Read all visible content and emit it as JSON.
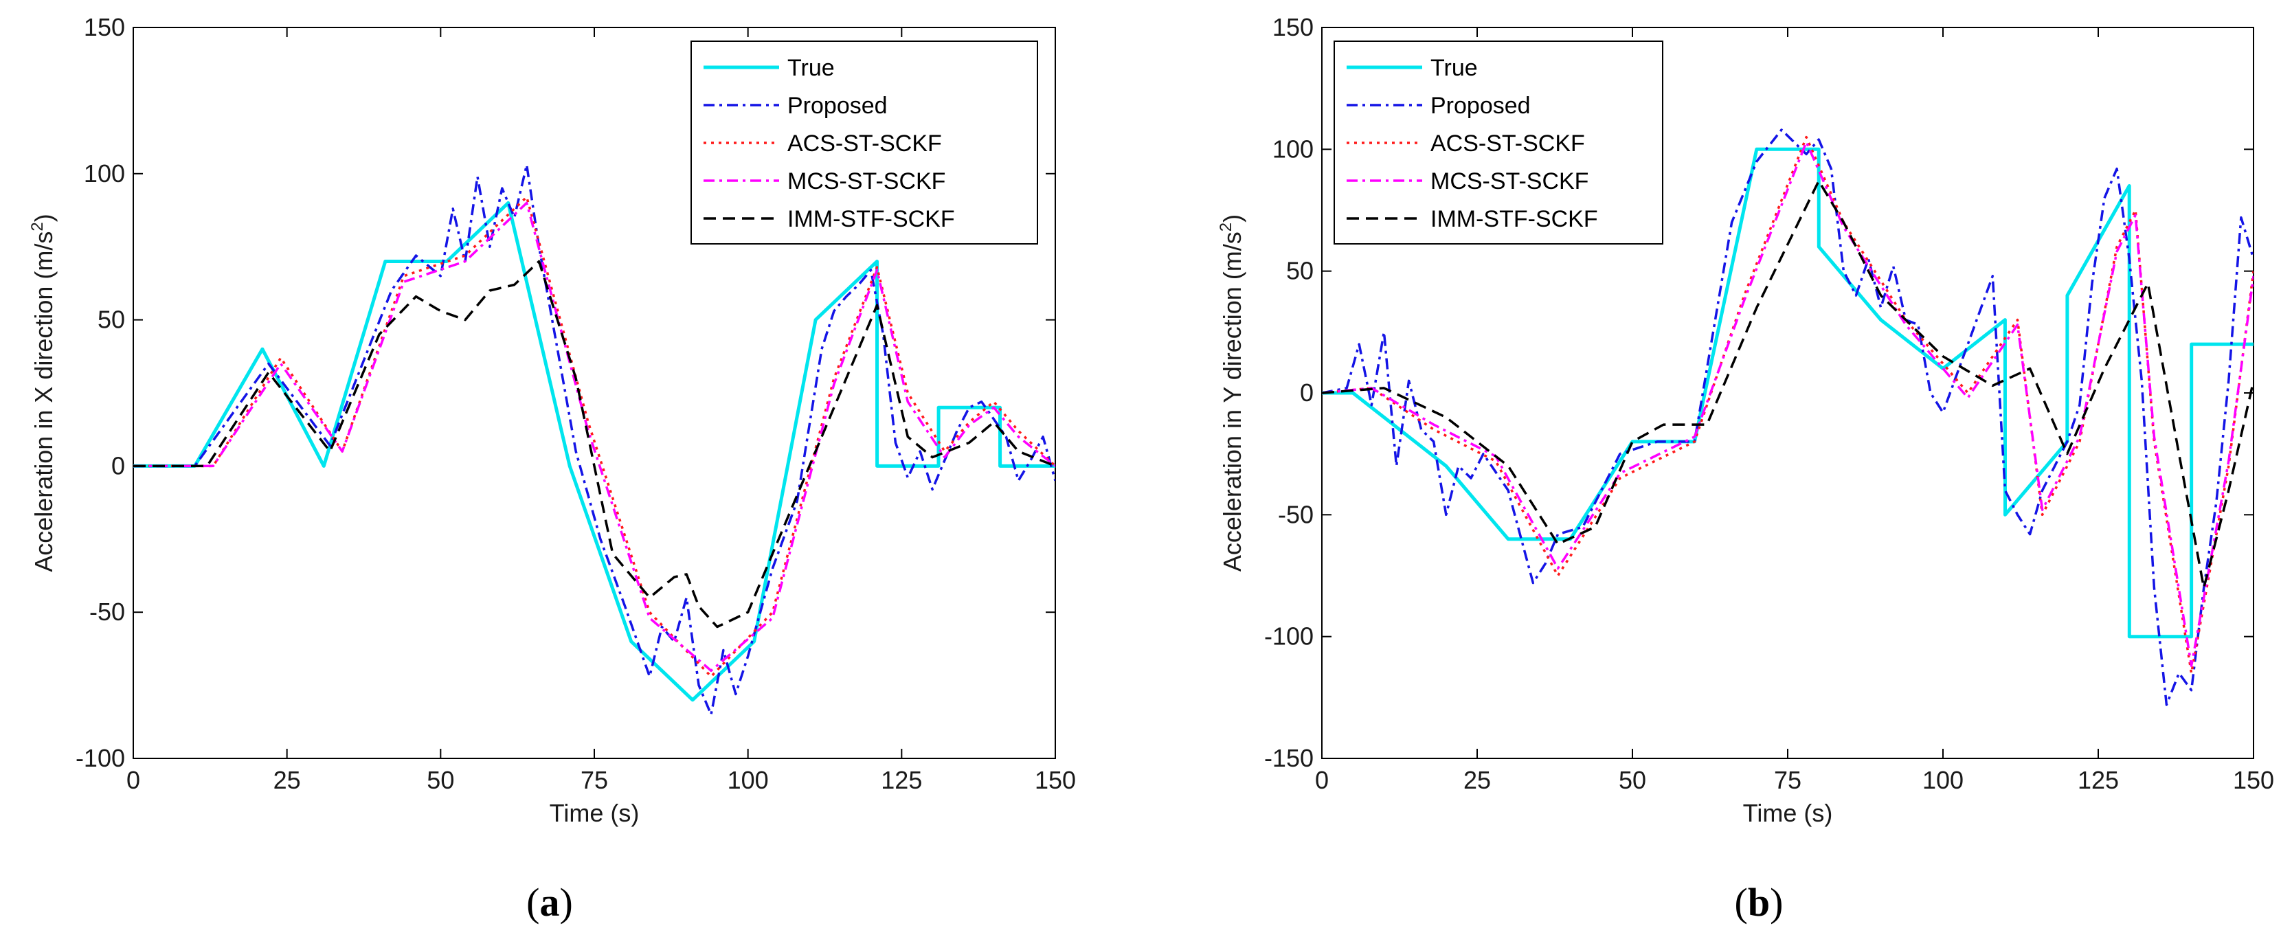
{
  "chart_data": [
    {
      "type": "line",
      "panel_label": "a",
      "xlabel": "Time (s)",
      "ylabel": "Acceleration in X direction (m/s2)",
      "ylabel_main": "Acceleration in X direction (m/s",
      "ylabel_sup": "2",
      "ylabel_end": ")",
      "xlim": [
        0,
        150
      ],
      "ylim": [
        -100,
        150
      ],
      "xticks": [
        "0",
        "25",
        "50",
        "75",
        "100",
        "125",
        "150"
      ],
      "yticks": [
        "-100",
        "-50",
        "0",
        "50",
        "100",
        "150"
      ],
      "legend_position": "top-right",
      "series": [
        {
          "name": "True",
          "color": "#00e5ee",
          "style": "solid",
          "x": [
            0,
            10,
            21,
            31,
            41,
            51,
            61,
            71,
            81,
            91,
            101,
            111,
            121,
            121.01,
            131,
            131.01,
            141,
            141.01,
            150
          ],
          "y": [
            0,
            0,
            40,
            0,
            70,
            70,
            90,
            0,
            -60,
            -80,
            -60,
            50,
            70,
            0,
            0,
            20,
            20,
            0,
            0
          ]
        },
        {
          "name": "Proposed",
          "color": "#1414e6",
          "style": "dashdot",
          "x": [
            0,
            10,
            22,
            32,
            42,
            46,
            50,
            52,
            54,
            56,
            58,
            60,
            62,
            64,
            66,
            72,
            76,
            80,
            84,
            86,
            88,
            90,
            92,
            94,
            96,
            98,
            100,
            104,
            108,
            112,
            114,
            116,
            118,
            120,
            122,
            124,
            126,
            128,
            130,
            132,
            134,
            136,
            138,
            140,
            142,
            144,
            146,
            148,
            150
          ],
          "y": [
            0,
            0,
            35,
            7,
            60,
            72,
            65,
            88,
            70,
            99,
            75,
            95,
            85,
            103,
            75,
            5,
            -25,
            -48,
            -72,
            -55,
            -60,
            -45,
            -75,
            -85,
            -63,
            -78,
            -65,
            -35,
            -12,
            40,
            53,
            58,
            62,
            67,
            45,
            8,
            -4,
            5,
            -8,
            2,
            12,
            20,
            22,
            16,
            10,
            -5,
            2,
            10,
            -5
          ]
        },
        {
          "name": "ACS-ST-SCKF",
          "color": "#ff1a1a",
          "style": "dotted",
          "x": [
            0,
            13,
            24,
            34,
            44,
            54,
            64,
            74,
            84,
            94,
            104,
            114,
            121,
            126,
            132,
            136,
            140,
            144,
            150
          ],
          "y": [
            0,
            0,
            37,
            5,
            65,
            72,
            92,
            15,
            -50,
            -72,
            -50,
            30,
            68,
            25,
            5,
            15,
            22,
            12,
            0
          ]
        },
        {
          "name": "MCS-ST-SCKF",
          "color": "#ff00ff",
          "style": "dashdot",
          "x": [
            0,
            13,
            24,
            34,
            44,
            54,
            64,
            74,
            84,
            94,
            104,
            114,
            121,
            126,
            132,
            136,
            140,
            144,
            150
          ],
          "y": [
            0,
            0,
            35,
            5,
            63,
            70,
            90,
            12,
            -52,
            -70,
            -52,
            28,
            67,
            22,
            3,
            14,
            20,
            10,
            0
          ]
        },
        {
          "name": "IMM-STF-SCKF",
          "color": "#000000",
          "style": "dashed",
          "x": [
            0,
            12,
            22,
            32,
            40,
            46,
            50,
            54,
            58,
            62,
            66,
            72,
            78,
            84,
            88,
            90,
            92,
            95,
            100,
            106,
            112,
            116,
            121,
            126,
            130,
            136,
            140,
            144,
            150
          ],
          "y": [
            0,
            0,
            32,
            5,
            45,
            58,
            53,
            50,
            60,
            62,
            70,
            30,
            -30,
            -45,
            -38,
            -37,
            -48,
            -55,
            -50,
            -20,
            10,
            30,
            55,
            10,
            3,
            8,
            15,
            5,
            0
          ]
        }
      ]
    },
    {
      "type": "line",
      "panel_label": "b",
      "xlabel": "Time (s)",
      "ylabel": "Acceleration in Y direction (m/s2)",
      "ylabel_main": "Acceleration in Y direction (m/s",
      "ylabel_sup": "2",
      "ylabel_end": ")",
      "xlim": [
        0,
        150
      ],
      "ylim": [
        -150,
        150
      ],
      "xticks": [
        "0",
        "25",
        "50",
        "75",
        "100",
        "125",
        "150"
      ],
      "yticks": [
        "-150",
        "-100",
        "-50",
        "0",
        "50",
        "100",
        "150"
      ],
      "legend_position": "top-left",
      "series": [
        {
          "name": "True",
          "color": "#00e5ee",
          "style": "solid",
          "x": [
            0,
            5,
            20,
            30,
            40,
            50,
            60,
            70,
            80,
            80.01,
            90,
            100,
            110,
            110.01,
            120,
            120.01,
            130,
            130.01,
            140,
            140.01,
            150
          ],
          "y": [
            0,
            0,
            -30,
            -60,
            -60,
            -20,
            -20,
            100,
            100,
            60,
            30,
            10,
            30,
            -50,
            -20,
            40,
            85,
            -100,
            -100,
            20,
            20
          ]
        },
        {
          "name": "Proposed",
          "color": "#1414e6",
          "style": "dashdot",
          "x": [
            0,
            4,
            6,
            8,
            10,
            12,
            14,
            16,
            18,
            20,
            22,
            24,
            26,
            30,
            34,
            36,
            38,
            42,
            48,
            54,
            60,
            66,
            70,
            74,
            78,
            80,
            82,
            84,
            86,
            88,
            90,
            92,
            94,
            96,
            98,
            100,
            104,
            108,
            110,
            112,
            114,
            116,
            118,
            120,
            122,
            124,
            126,
            128,
            130,
            132,
            134,
            136,
            138,
            140,
            142,
            144,
            146,
            148,
            150
          ],
          "y": [
            0,
            2,
            20,
            -5,
            25,
            -30,
            5,
            -15,
            -20,
            -50,
            -30,
            -35,
            -25,
            -40,
            -78,
            -70,
            -58,
            -55,
            -25,
            -20,
            -20,
            70,
            95,
            108,
            98,
            104,
            92,
            50,
            40,
            55,
            35,
            52,
            30,
            28,
            0,
            -8,
            20,
            48,
            -40,
            -50,
            -58,
            -40,
            -30,
            -20,
            -5,
            45,
            80,
            92,
            55,
            5,
            -80,
            -128,
            -115,
            -122,
            -80,
            -45,
            5,
            72,
            55
          ]
        },
        {
          "name": "ACS-ST-SCKF",
          "color": "#ff1a1a",
          "style": "dotted",
          "x": [
            0,
            8,
            18,
            28,
            38,
            48,
            60,
            68,
            78,
            84,
            94,
            104,
            112,
            116,
            122,
            128,
            131,
            134,
            140,
            146,
            150
          ],
          "y": [
            0,
            2,
            -15,
            -28,
            -75,
            -35,
            -20,
            40,
            105,
            70,
            30,
            0,
            30,
            -50,
            -20,
            60,
            75,
            -20,
            -115,
            -30,
            50
          ]
        },
        {
          "name": "MCS-ST-SCKF",
          "color": "#ff00ff",
          "style": "dashdot",
          "x": [
            0,
            8,
            18,
            28,
            38,
            48,
            60,
            68,
            78,
            84,
            94,
            104,
            112,
            116,
            122,
            128,
            131,
            134,
            140,
            146,
            150
          ],
          "y": [
            0,
            2,
            -13,
            -26,
            -72,
            -33,
            -18,
            38,
            103,
            68,
            28,
            -2,
            28,
            -48,
            -18,
            58,
            73,
            -18,
            -112,
            -28,
            48
          ]
        },
        {
          "name": "IMM-STF-SCKF",
          "color": "#000000",
          "style": "dashed",
          "x": [
            0,
            10,
            20,
            30,
            38,
            44,
            50,
            55,
            62,
            70,
            80,
            84,
            90,
            100,
            108,
            114,
            120,
            126,
            133,
            138,
            142,
            146,
            150
          ],
          "y": [
            0,
            2,
            -10,
            -30,
            -62,
            -55,
            -20,
            -13,
            -13,
            35,
            87,
            70,
            40,
            15,
            3,
            10,
            -25,
            10,
            45,
            -25,
            -80,
            -40,
            5
          ]
        }
      ]
    }
  ]
}
